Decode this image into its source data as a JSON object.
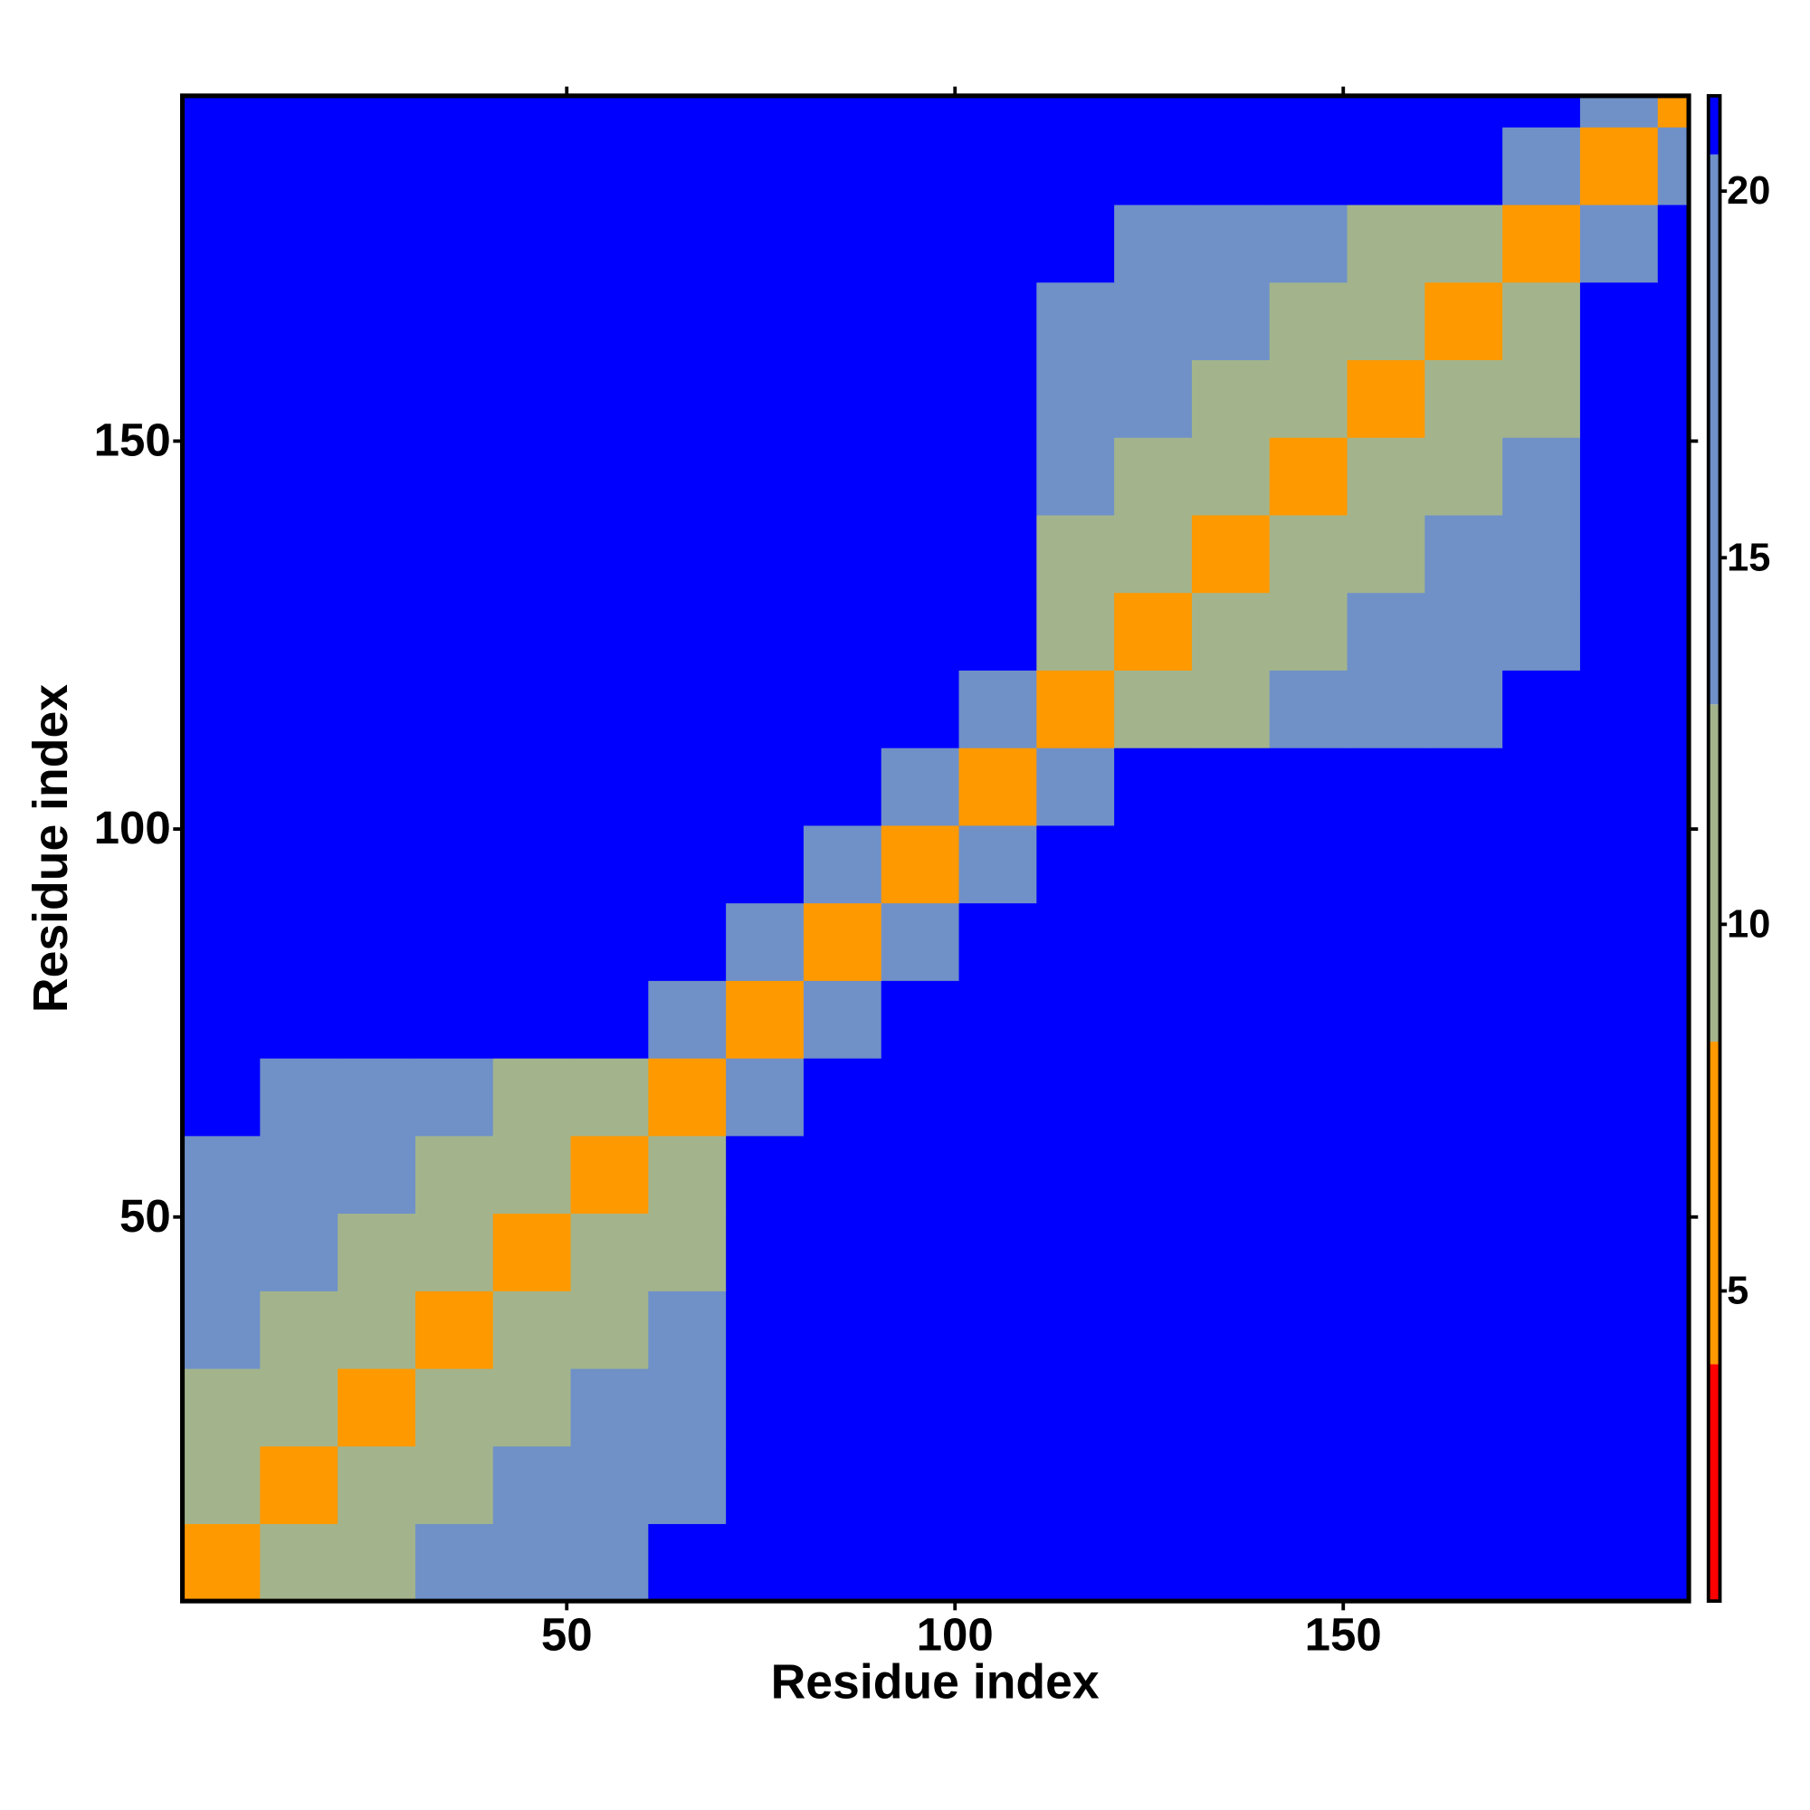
{
  "chart_data": {
    "type": "heatmap",
    "xlabel": "Residue index",
    "ylabel": "Residue index",
    "xlim": [
      0.5,
      194.5
    ],
    "ylim": [
      0.5,
      194.5
    ],
    "xticks": [
      50,
      100,
      150
    ],
    "yticks": [
      50,
      100,
      150
    ],
    "xbins": [
      0.5,
      10.5,
      20.5,
      30.5,
      40.5,
      50.5,
      60.5,
      70.5,
      80.5,
      90.5,
      100.5,
      110.5,
      120.5,
      130.5,
      140.5,
      150.5,
      160.5,
      170.5,
      180.5,
      190.5,
      194.5
    ],
    "ybins": [
      0.5,
      10.5,
      20.5,
      30.5,
      40.5,
      50.5,
      60.5,
      70.5,
      80.5,
      90.5,
      100.5,
      110.5,
      120.5,
      130.5,
      140.5,
      150.5,
      160.5,
      170.5,
      180.5,
      190.5,
      194.5
    ],
    "zlim": [
      0.77,
      21.3
    ],
    "zticks": [
      5,
      10,
      15,
      20
    ],
    "colorscale": [
      [
        4,
        "#ff0000"
      ],
      [
        8.4,
        "#ff9900"
      ],
      [
        13,
        "#a3b48c"
      ],
      [
        20.5,
        "#6f91c8"
      ],
      [
        21.3,
        "#0000ff"
      ]
    ],
    "z": [
      [
        6,
        11,
        13,
        15,
        17,
        19,
        21,
        21,
        21,
        21,
        21,
        21,
        21,
        21,
        21,
        21,
        21,
        21,
        21,
        21
      ],
      [
        11,
        6,
        11,
        13,
        15,
        17,
        19,
        21,
        21,
        21,
        21,
        21,
        21,
        21,
        21,
        21,
        21,
        21,
        21,
        21
      ],
      [
        13,
        11,
        6,
        11,
        13,
        15,
        17,
        21,
        21,
        21,
        21,
        21,
        21,
        21,
        21,
        21,
        21,
        21,
        21,
        21
      ],
      [
        15,
        13,
        11,
        6,
        11,
        13,
        15,
        21,
        21,
        21,
        21,
        21,
        21,
        21,
        21,
        21,
        21,
        21,
        21,
        21
      ],
      [
        17,
        15,
        13,
        11,
        6,
        11,
        13,
        21,
        21,
        21,
        21,
        21,
        21,
        21,
        21,
        21,
        21,
        21,
        21,
        21
      ],
      [
        19,
        17,
        15,
        13,
        11,
        6,
        11,
        21,
        21,
        21,
        21,
        21,
        21,
        21,
        21,
        21,
        21,
        21,
        21,
        21
      ],
      [
        21,
        19,
        17,
        15,
        13,
        11,
        6,
        14,
        21,
        21,
        21,
        21,
        21,
        21,
        21,
        21,
        21,
        21,
        21,
        21
      ],
      [
        21,
        21,
        21,
        21,
        21,
        21,
        14,
        6,
        14,
        21,
        21,
        21,
        21,
        21,
        21,
        21,
        21,
        21,
        21,
        21
      ],
      [
        21,
        21,
        21,
        21,
        21,
        21,
        21,
        14,
        6,
        14,
        21,
        21,
        21,
        21,
        21,
        21,
        21,
        21,
        21,
        21
      ],
      [
        21,
        21,
        21,
        21,
        21,
        21,
        21,
        21,
        14,
        6,
        14,
        21,
        21,
        21,
        21,
        21,
        21,
        21,
        21,
        21
      ],
      [
        21,
        21,
        21,
        21,
        21,
        21,
        21,
        21,
        21,
        14,
        6,
        14,
        21,
        21,
        21,
        21,
        21,
        21,
        21,
        21
      ],
      [
        21,
        21,
        21,
        21,
        21,
        21,
        21,
        21,
        21,
        21,
        14,
        6,
        11,
        13,
        15,
        17,
        19,
        21,
        21,
        21
      ],
      [
        21,
        21,
        21,
        21,
        21,
        21,
        21,
        21,
        21,
        21,
        21,
        11,
        6,
        11,
        13,
        15,
        17,
        19,
        21,
        21
      ],
      [
        21,
        21,
        21,
        21,
        21,
        21,
        21,
        21,
        21,
        21,
        21,
        13,
        11,
        6,
        11,
        13,
        15,
        17,
        21,
        21
      ],
      [
        21,
        21,
        21,
        21,
        21,
        21,
        21,
        21,
        21,
        21,
        21,
        15,
        13,
        11,
        6,
        11,
        13,
        15,
        21,
        21
      ],
      [
        21,
        21,
        21,
        21,
        21,
        21,
        21,
        21,
        21,
        21,
        21,
        17,
        15,
        13,
        11,
        6,
        11,
        13,
        21,
        21
      ],
      [
        21,
        21,
        21,
        21,
        21,
        21,
        21,
        21,
        21,
        21,
        21,
        19,
        17,
        15,
        13,
        11,
        6,
        11,
        21,
        21
      ],
      [
        21,
        21,
        21,
        21,
        21,
        21,
        21,
        21,
        21,
        21,
        21,
        21,
        19,
        17,
        15,
        13,
        11,
        6,
        14,
        21
      ],
      [
        21,
        21,
        21,
        21,
        21,
        21,
        21,
        21,
        21,
        21,
        21,
        21,
        21,
        21,
        21,
        21,
        21,
        14,
        6,
        14
      ],
      [
        21,
        21,
        21,
        21,
        21,
        21,
        21,
        21,
        21,
        21,
        21,
        21,
        21,
        21,
        21,
        21,
        21,
        21,
        14,
        6
      ]
    ]
  }
}
